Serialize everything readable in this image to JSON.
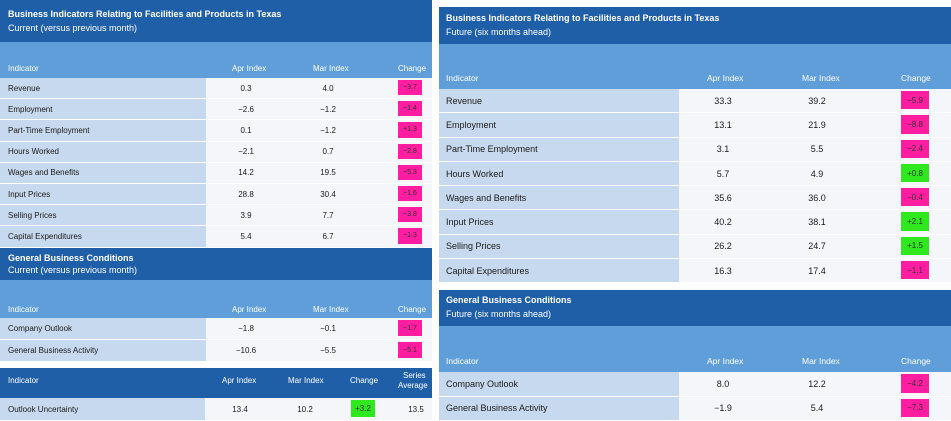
{
  "left": {
    "table1": {
      "title": "Business Indicators Relating to Facilities and Products in Texas",
      "subtitle": "Current (versus previous month)",
      "columns": [
        "Indicator",
        "Apr Index",
        "Mar Index",
        "Change"
      ],
      "rows": [
        {
          "indicator": "Revenue",
          "apr": "0.3",
          "mar": "4.0",
          "change": "−3.7",
          "status": "pink"
        },
        {
          "indicator": "Employment",
          "apr": "−2.6",
          "mar": "−1.2",
          "change": "−1.4",
          "status": "pink"
        },
        {
          "indicator": "Part-Time Employment",
          "apr": "0.1",
          "mar": "−1.2",
          "change": "+1.3",
          "status": "pink"
        },
        {
          "indicator": "Hours Worked",
          "apr": "−2.1",
          "mar": "0.7",
          "change": "−2.8",
          "status": "pink"
        },
        {
          "indicator": "Wages and Benefits",
          "apr": "14.2",
          "mar": "19.5",
          "change": "−5.3",
          "status": "pink"
        },
        {
          "indicator": "Input Prices",
          "apr": "28.8",
          "mar": "30.4",
          "change": "−1.6",
          "status": "pink"
        },
        {
          "indicator": "Selling Prices",
          "apr": "3.9",
          "mar": "7.7",
          "change": "−3.8",
          "status": "pink"
        },
        {
          "indicator": "Capital Expenditures",
          "apr": "5.4",
          "mar": "6.7",
          "change": "−1.3",
          "status": "pink"
        }
      ]
    },
    "table2": {
      "title": "General Business Conditions",
      "subtitle": "Current (versus previous month)",
      "columns": [
        "Indicator",
        "Apr Index",
        "Mar Index",
        "Change"
      ],
      "rows": [
        {
          "indicator": "Company Outlook",
          "apr": "−1.8",
          "mar": "−0.1",
          "change": "−1.7",
          "status": "pink"
        },
        {
          "indicator": "General Business Activity",
          "apr": "−10.6",
          "mar": "−5.5",
          "change": "−5.1",
          "status": "pink"
        }
      ]
    },
    "table3": {
      "columns": [
        "Indicator",
        "Apr Index",
        "Mar Index",
        "Change",
        "Series",
        "Average"
      ],
      "rows": [
        {
          "indicator": "Outlook Uncertainty",
          "apr": "13.4",
          "mar": "10.2",
          "change": "+3.2",
          "average": "13.5",
          "status": "green"
        }
      ]
    }
  },
  "right": {
    "table1": {
      "title": "Business Indicators Relating to Facilities and Products in Texas",
      "subtitle": "Future (six months ahead)",
      "columns": [
        "Indicator",
        "Apr Index",
        "Mar Index",
        "Change"
      ],
      "rows": [
        {
          "indicator": "Revenue",
          "apr": "33.3",
          "mar": "39.2",
          "change": "−5.9",
          "status": "pink"
        },
        {
          "indicator": "Employment",
          "apr": "13.1",
          "mar": "21.9",
          "change": "−8.8",
          "status": "pink"
        },
        {
          "indicator": "Part-Time Employment",
          "apr": "3.1",
          "mar": "5.5",
          "change": "−2.4",
          "status": "pink"
        },
        {
          "indicator": "Hours Worked",
          "apr": "5.7",
          "mar": "4.9",
          "change": "+0.8",
          "status": "green"
        },
        {
          "indicator": "Wages and Benefits",
          "apr": "35.6",
          "mar": "36.0",
          "change": "−0.4",
          "status": "pink"
        },
        {
          "indicator": "Input Prices",
          "apr": "40.2",
          "mar": "38.1",
          "change": "+2.1",
          "status": "green"
        },
        {
          "indicator": "Selling Prices",
          "apr": "26.2",
          "mar": "24.7",
          "change": "+1.5",
          "status": "green"
        },
        {
          "indicator": "Capital Expenditures",
          "apr": "16.3",
          "mar": "17.4",
          "change": "−1.1",
          "status": "pink"
        }
      ]
    },
    "table2": {
      "title": "General Business Conditions",
      "subtitle": "Future (six months ahead)",
      "columns": [
        "Indicator",
        "Apr Index",
        "Mar Index",
        "Change"
      ],
      "rows": [
        {
          "indicator": "Company Outlook",
          "apr": "8.0",
          "mar": "12.2",
          "change": "−4.2",
          "status": "pink"
        },
        {
          "indicator": "General Business Activity",
          "apr": "−1.9",
          "mar": "5.4",
          "change": "−7.3",
          "status": "pink"
        }
      ]
    }
  },
  "colors": {
    "header": "#1f5fa8",
    "subheader": "#5f9ed8",
    "label_cell": "#c6d9ee",
    "pink": "#ff1ea0",
    "green": "#2fe81e"
  }
}
